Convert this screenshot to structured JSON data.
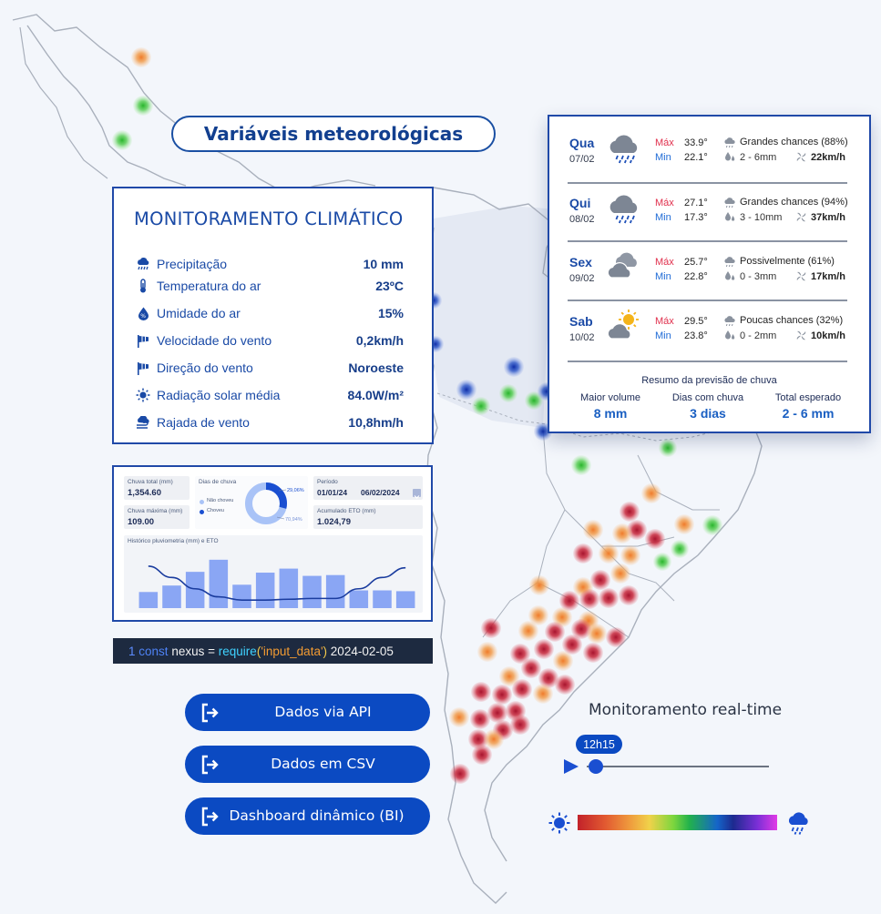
{
  "title_pill": "Variáveis meteorológicas",
  "monitor": {
    "title": "MONITORAMENTO CLIMÁTICO",
    "rows": [
      {
        "icon": "cloud-rain-icon",
        "label": "Precipitação",
        "value": "10 mm"
      },
      {
        "icon": "thermometer-icon",
        "label": "Temperatura do ar",
        "value": "23ºC"
      },
      {
        "icon": "humidity-icon",
        "label": "Umidade do ar",
        "value": "15%"
      },
      {
        "icon": "windsock-icon",
        "label": "Velocidade do vento",
        "value": "0,2km/h"
      },
      {
        "icon": "windsock-icon",
        "label": "Direção do vento",
        "value": "Noroeste"
      },
      {
        "icon": "sun-icon",
        "label": "Radiação solar média",
        "value": "84.0W/m²"
      },
      {
        "icon": "wind-gust-icon",
        "label": "Rajada de vento",
        "value": "10,8hm/h"
      }
    ]
  },
  "dashboard": {
    "chuva_total_label": "Chuva total (mm)",
    "chuva_total_value": "1,354.60",
    "chuva_maxima_label": "Chuva máxima (mm)",
    "chuva_maxima_value": "109.00",
    "dias_chuva_label": "Dias de chuva",
    "legend_nao_choveu": "Não choveu",
    "legend_choveu": "Choveu",
    "pct_choveu": "29,06%",
    "pct_nao_choveu": "70,94%",
    "periodo_label": "Período",
    "periodo_inicio": "01/01/24",
    "periodo_fim": "06/02/2024",
    "eto_label": "Acumulado ETO (mm)",
    "eto_value": "1.024,79",
    "chart_title": "Histórico pluviometria (mm) e ETO",
    "colors": {
      "bar": "#8aa6f4",
      "line": "#1a3c9e",
      "donut_main": "#1a4fd1",
      "donut_rest": "#a9c3f7"
    }
  },
  "chart_data": {
    "type": "bar",
    "title": "Histórico pluviometria (mm) e ETO",
    "categories": [
      "",
      "",
      "",
      "",
      "",
      "",
      "",
      "",
      "",
      "",
      "",
      ""
    ],
    "series": [
      {
        "values": [
          20,
          28,
          45,
          60,
          29,
          44,
          49,
          40,
          41,
          22,
          22,
          21
        ]
      },
      {
        "values": [
          52,
          38,
          24,
          14,
          10,
          10,
          11,
          12,
          12,
          24,
          38,
          50
        ]
      }
    ],
    "ylim": [
      0,
      70
    ]
  },
  "code_line": {
    "line_no": "1",
    "kw": "const",
    "ident": "nexus",
    "eq": "=",
    "fn": "require",
    "arg": "'input_data'",
    "date": "2024-02-05",
    "colors": {
      "num": "#5d8dff",
      "kw": "#4e82f5",
      "ident": "#f2f2f2",
      "fn": "#3fd2ff",
      "str": "#f29b32",
      "paren": "#f2c94c"
    }
  },
  "buttons": [
    {
      "label": "Dados via API",
      "icon": "sign-in-icon"
    },
    {
      "label": "Dados em CSV",
      "icon": "sign-in-icon"
    },
    {
      "label": "Dashboard dinâmico (BI)",
      "icon": "sign-in-icon"
    }
  ],
  "forecast": {
    "days": [
      {
        "day": "Qua",
        "date": "07/02",
        "icon": "cloud-heavy-rain-icon",
        "max_label": "Máx",
        "max": "33.9°",
        "min_label": "Min",
        "min": "22.1°",
        "chance": "Grandes chances (88%)",
        "rain": "2 - 6mm",
        "wind": "22km/h"
      },
      {
        "day": "Qui",
        "date": "08/02",
        "icon": "cloud-heavy-rain-icon",
        "max_label": "Máx",
        "max": "27.1°",
        "min_label": "Min",
        "min": "17.3°",
        "chance": "Grandes chances (94%)",
        "rain": "3 - 10mm",
        "wind": "37km/h"
      },
      {
        "day": "Sex",
        "date": "09/02",
        "icon": "clouds-icon",
        "max_label": "Máx",
        "max": "25.7°",
        "min_label": "Min",
        "min": "22.8°",
        "chance": "Possivelmente (61%)",
        "rain": "0 - 3mm",
        "wind": "17km/h"
      },
      {
        "day": "Sab",
        "date": "10/02",
        "icon": "sun-cloud-icon",
        "max_label": "Máx",
        "max": "29.5°",
        "min_label": "Min",
        "min": "23.8°",
        "chance": "Poucas chances (32%)",
        "rain": "0 - 2mm",
        "wind": "10km/h"
      }
    ],
    "summary_title": "Resumo da previsão de chuva",
    "summary": [
      {
        "label": "Maior volume",
        "value": "8 mm"
      },
      {
        "label": "Dias com chuva",
        "value": "3 dias"
      },
      {
        "label": "Total esperado",
        "value": "2 - 6 mm"
      }
    ]
  },
  "realtime": {
    "label": "Monitoramento real-time",
    "time": "12h15",
    "slider_position": 0.05
  },
  "scale": {
    "low_icon": "sun-icon",
    "high_icon": "cloud-rain-icon",
    "colors": [
      "#c2222a",
      "#ef9a3d",
      "#f0d24a",
      "#22b14c",
      "#1565c9",
      "#1d2a8f",
      "#e13ae6"
    ]
  },
  "map": {
    "colors": {
      "outline": "#a9b0bc",
      "land_highlight": "#e6ebf4",
      "red": "#c8283c",
      "orange": "#f08a3a",
      "green": "#3bc43b",
      "blue": "#1e48c2"
    }
  }
}
